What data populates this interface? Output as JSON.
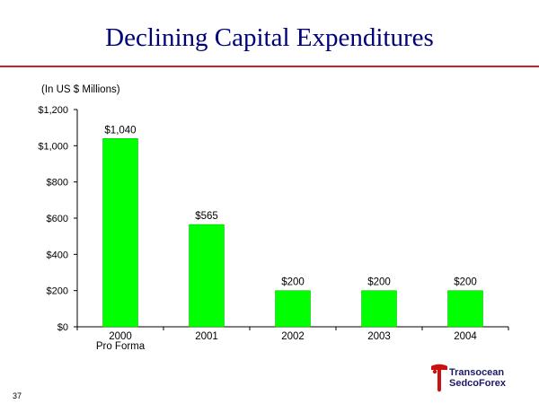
{
  "slide": {
    "title": "Declining Capital Expenditures",
    "unit_label": "(In US $ Millions)",
    "page_number": "37",
    "logo": {
      "line1": "Transocean",
      "line2": "SedcoForex",
      "mark_icon": "transocean-t-logo-icon"
    }
  },
  "colors": {
    "title": "#00007a",
    "rule": "#cc2222",
    "bar": "#00ff00",
    "bar_edge": "#00b000",
    "logo_red": "#cc1111"
  },
  "chart_data": {
    "type": "bar",
    "title": "",
    "xlabel": "",
    "ylabel": "(In US $ Millions)",
    "categories": [
      [
        "2000",
        "Pro Forma"
      ],
      [
        "2001"
      ],
      [
        "2002"
      ],
      [
        "2003"
      ],
      [
        "2004"
      ]
    ],
    "values": [
      1040,
      565,
      200,
      200,
      200
    ],
    "data_labels": [
      "$1,040",
      "$565",
      "$200",
      "$200",
      "$200"
    ],
    "ylim": [
      0,
      1200
    ],
    "yticks": [
      0,
      200,
      400,
      600,
      800,
      1000,
      1200
    ],
    "ytick_labels": [
      "$0",
      "$200",
      "$400",
      "$600",
      "$800",
      "$1,000",
      "$1,200"
    ],
    "grid": false,
    "legend": "none"
  }
}
